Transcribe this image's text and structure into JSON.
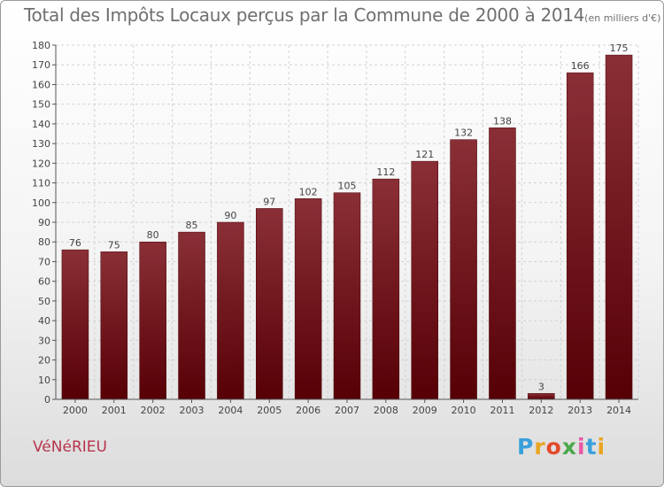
{
  "header": {
    "title": "Total des Impôts Locaux perçus par la Commune de 2000 à 2014",
    "unit": "(en milliers d'€)"
  },
  "footer": {
    "commune": "VéNéRIEU",
    "brand": "Proxiti",
    "brand_colors": [
      "#3aa0dc",
      "#e9a521",
      "#e24a2a",
      "#4aa84a",
      "#e85aa2",
      "#3aa0dc",
      "#e9a521"
    ]
  },
  "chart_data": {
    "type": "bar",
    "title": "Total des Impôts Locaux perçus par la Commune de 2000 à 2014",
    "xlabel": "",
    "ylabel": "",
    "categories": [
      "2000",
      "2001",
      "2002",
      "2003",
      "2004",
      "2005",
      "2006",
      "2007",
      "2008",
      "2009",
      "2010",
      "2011",
      "2012",
      "2013",
      "2014"
    ],
    "values": [
      76,
      75,
      80,
      85,
      90,
      97,
      102,
      105,
      112,
      121,
      132,
      138,
      3,
      166,
      175
    ],
    "value_labels": [
      "76",
      "75",
      "80",
      "85",
      "90",
      "97",
      "102",
      "105",
      "112",
      "121",
      "132",
      "138",
      "3",
      "166",
      "175"
    ],
    "ylim": [
      0,
      180
    ],
    "yticks": [
      0,
      10,
      20,
      30,
      40,
      50,
      60,
      70,
      80,
      90,
      100,
      110,
      120,
      130,
      140,
      150,
      160,
      170,
      180
    ],
    "ytick_labels": [
      "0",
      "10",
      "20",
      "30",
      "40",
      "50",
      "60",
      "70",
      "80",
      "90",
      "100",
      "110",
      "120",
      "130",
      "140",
      "150",
      "160",
      "170",
      "180"
    ],
    "grid": true,
    "bar_color": "#7a1a22"
  }
}
